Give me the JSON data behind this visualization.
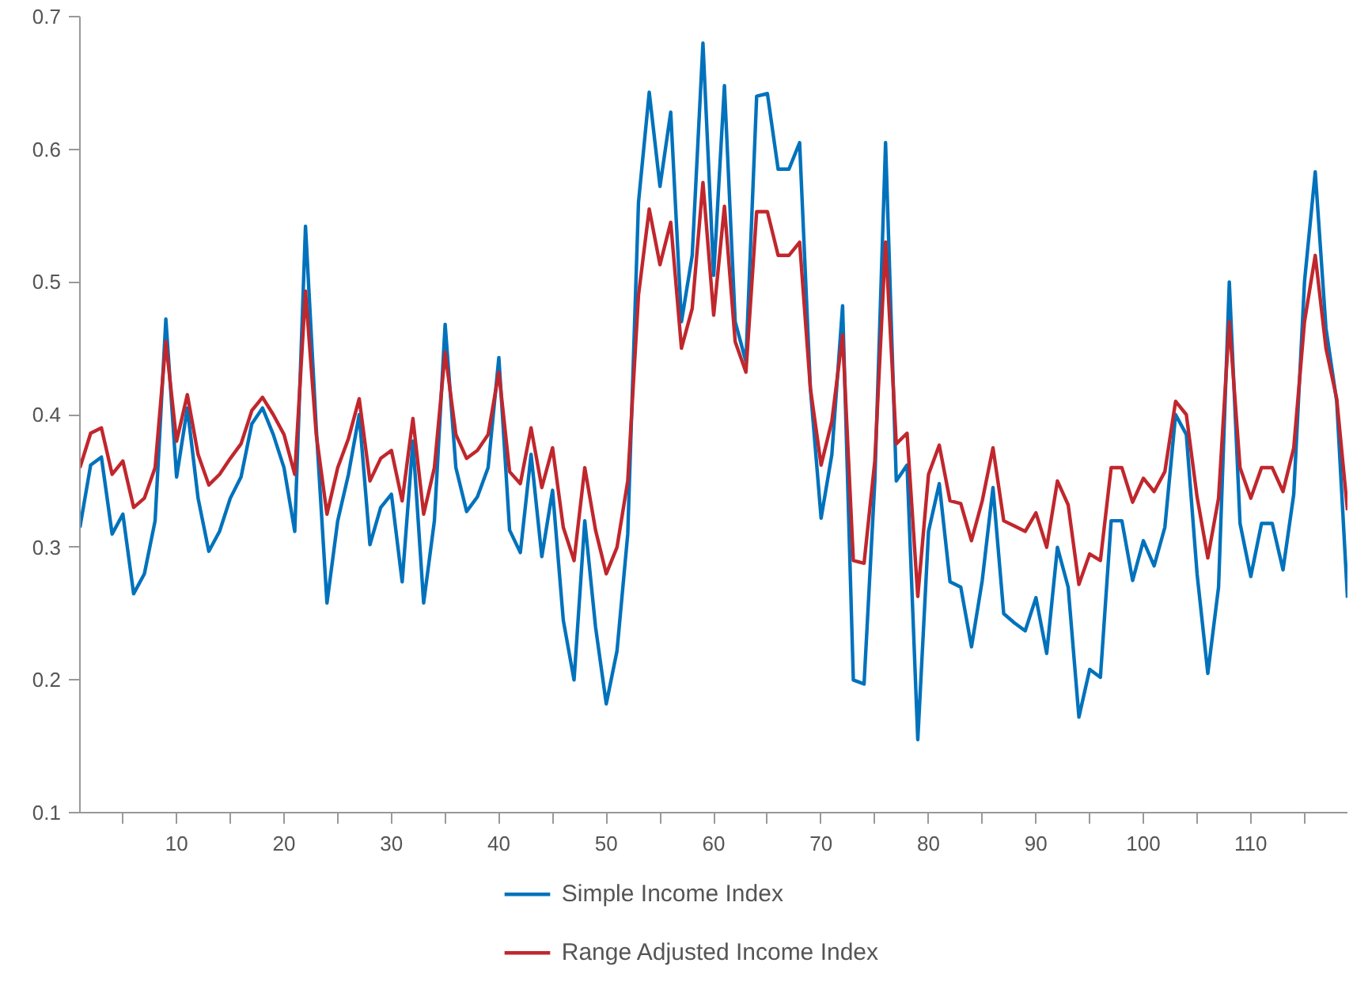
{
  "chart_data": {
    "type": "line",
    "x": [
      1,
      2,
      3,
      4,
      5,
      6,
      7,
      8,
      9,
      10,
      11,
      12,
      13,
      14,
      15,
      16,
      17,
      18,
      19,
      20,
      21,
      22,
      23,
      24,
      25,
      26,
      27,
      28,
      29,
      30,
      31,
      32,
      33,
      34,
      35,
      36,
      37,
      38,
      39,
      40,
      41,
      42,
      43,
      44,
      45,
      46,
      47,
      48,
      49,
      50,
      51,
      52,
      53,
      54,
      55,
      56,
      57,
      58,
      59,
      60,
      61,
      62,
      63,
      64,
      65,
      66,
      67,
      68,
      69,
      70,
      71,
      72,
      73,
      74,
      75,
      76,
      77,
      78,
      79,
      80,
      81,
      82,
      83,
      84,
      85,
      86,
      87,
      88,
      89,
      90,
      91,
      92,
      93,
      94,
      95,
      96,
      97,
      98,
      99,
      100,
      101,
      102,
      103,
      104,
      105,
      106,
      107,
      108,
      109,
      110,
      111,
      112,
      113,
      114,
      115,
      116,
      117,
      118,
      119
    ],
    "series": [
      {
        "name": "Simple Income Index",
        "color": "#0072bc",
        "values": [
          0.315,
          0.362,
          0.368,
          0.31,
          0.325,
          0.265,
          0.28,
          0.32,
          0.472,
          0.353,
          0.405,
          0.337,
          0.297,
          0.312,
          0.337,
          0.353,
          0.393,
          0.405,
          0.385,
          0.36,
          0.312,
          0.542,
          0.39,
          0.258,
          0.32,
          0.355,
          0.4,
          0.302,
          0.33,
          0.34,
          0.274,
          0.38,
          0.258,
          0.32,
          0.468,
          0.36,
          0.327,
          0.338,
          0.36,
          0.443,
          0.313,
          0.296,
          0.37,
          0.293,
          0.343,
          0.245,
          0.2,
          0.32,
          0.24,
          0.182,
          0.222,
          0.31,
          0.56,
          0.643,
          0.572,
          0.628,
          0.47,
          0.52,
          0.68,
          0.505,
          0.648,
          0.47,
          0.44,
          0.64,
          0.642,
          0.585,
          0.585,
          0.605,
          0.42,
          0.322,
          0.37,
          0.482,
          0.2,
          0.197,
          0.35,
          0.605,
          0.35,
          0.362,
          0.155,
          0.312,
          0.348,
          0.274,
          0.27,
          0.225,
          0.275,
          0.345,
          0.25,
          0.243,
          0.237,
          0.262,
          0.22,
          0.3,
          0.27,
          0.172,
          0.208,
          0.202,
          0.32,
          0.32,
          0.275,
          0.305,
          0.286,
          0.315,
          0.4,
          0.385,
          0.28,
          0.205,
          0.27,
          0.5,
          0.318,
          0.278,
          0.318,
          0.318,
          0.283,
          0.34,
          0.5,
          0.583,
          0.465,
          0.41,
          0.262
        ]
      },
      {
        "name": "Range Adjusted Income Index",
        "color": "#c0272d",
        "values": [
          0.36,
          0.386,
          0.39,
          0.355,
          0.365,
          0.33,
          0.337,
          0.36,
          0.455,
          0.38,
          0.415,
          0.37,
          0.347,
          0.355,
          0.367,
          0.378,
          0.403,
          0.413,
          0.4,
          0.385,
          0.355,
          0.493,
          0.385,
          0.325,
          0.36,
          0.382,
          0.412,
          0.35,
          0.367,
          0.373,
          0.335,
          0.397,
          0.325,
          0.36,
          0.447,
          0.385,
          0.367,
          0.373,
          0.385,
          0.432,
          0.357,
          0.348,
          0.39,
          0.345,
          0.375,
          0.315,
          0.29,
          0.36,
          0.313,
          0.28,
          0.3,
          0.35,
          0.49,
          0.555,
          0.513,
          0.545,
          0.45,
          0.48,
          0.575,
          0.475,
          0.557,
          0.455,
          0.432,
          0.553,
          0.553,
          0.52,
          0.52,
          0.53,
          0.42,
          0.362,
          0.395,
          0.46,
          0.29,
          0.288,
          0.365,
          0.53,
          0.378,
          0.386,
          0.263,
          0.355,
          0.377,
          0.335,
          0.333,
          0.305,
          0.335,
          0.375,
          0.32,
          0.316,
          0.312,
          0.326,
          0.3,
          0.35,
          0.332,
          0.272,
          0.295,
          0.29,
          0.36,
          0.36,
          0.334,
          0.352,
          0.342,
          0.357,
          0.41,
          0.4,
          0.338,
          0.292,
          0.337,
          0.47,
          0.36,
          0.337,
          0.36,
          0.36,
          0.342,
          0.375,
          0.47,
          0.52,
          0.45,
          0.412,
          0.328
        ]
      }
    ],
    "xlim": [
      1,
      119
    ],
    "xticks": [
      {
        "value": 5,
        "label": null
      },
      10,
      {
        "value": 15,
        "label": null
      },
      20,
      {
        "value": 25,
        "label": null
      },
      30,
      {
        "value": 35,
        "label": null
      },
      40,
      {
        "value": 45,
        "label": null
      },
      50,
      {
        "value": 55,
        "label": null
      },
      60,
      {
        "value": 65,
        "label": null
      },
      70,
      {
        "value": 75,
        "label": null
      },
      80,
      {
        "value": 85,
        "label": null
      },
      90,
      {
        "value": 95,
        "label": null
      },
      100,
      {
        "value": 105,
        "label": null
      },
      110,
      {
        "value": 115,
        "label": null
      }
    ],
    "ylim": [
      0.1,
      0.7
    ],
    "yticks": [
      0.1,
      0.2,
      0.3,
      0.4,
      0.5,
      0.6,
      0.7
    ],
    "grid": false,
    "legend": "bottom",
    "line_style": "solid"
  }
}
